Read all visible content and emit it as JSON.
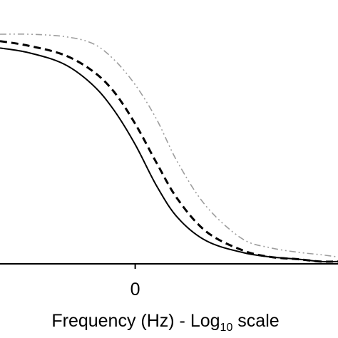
{
  "chart_data": {
    "type": "line",
    "xlabel": "Frequency (Hz)  -  Log",
    "xlabel_subscript": "10",
    "xlabel_suffix": " scale",
    "xticks": [
      0
    ],
    "tick_labels": [
      "0"
    ],
    "xlim": [
      -1.9,
      2.85
    ],
    "ylim": [
      0,
      1
    ],
    "grid": false,
    "legend": "none",
    "series": [
      {
        "style": "solid",
        "color": "#000000",
        "x": [
          -1.9,
          -1.5,
          -1.0,
          -0.6,
          -0.3,
          0.0,
          0.3,
          0.6,
          1.0,
          1.5,
          1.9,
          2.3,
          2.6,
          2.85
        ],
        "values": [
          0.94,
          0.92,
          0.87,
          0.78,
          0.67,
          0.52,
          0.34,
          0.2,
          0.1,
          0.05,
          0.03,
          0.02,
          0.01,
          0.01
        ]
      },
      {
        "style": "dashed",
        "color": "#000000",
        "x": [
          -1.9,
          -1.5,
          -1.0,
          -0.6,
          -0.3,
          0.0,
          0.3,
          0.6,
          1.0,
          1.5,
          1.9,
          2.3,
          2.6,
          2.85
        ],
        "values": [
          0.97,
          0.95,
          0.91,
          0.84,
          0.75,
          0.61,
          0.44,
          0.28,
          0.14,
          0.06,
          0.03,
          0.02,
          0.01,
          0.01
        ]
      },
      {
        "style": "dash-dot-dot",
        "color": "#9e9e9e",
        "x": [
          -1.9,
          -1.5,
          -1.0,
          -0.6,
          -0.3,
          0.0,
          0.3,
          0.6,
          1.0,
          1.5,
          1.9,
          2.3,
          2.6,
          2.85
        ],
        "values": [
          1.0,
          1.0,
          0.99,
          0.96,
          0.89,
          0.78,
          0.63,
          0.44,
          0.25,
          0.11,
          0.07,
          0.05,
          0.04,
          0.03
        ]
      }
    ]
  }
}
